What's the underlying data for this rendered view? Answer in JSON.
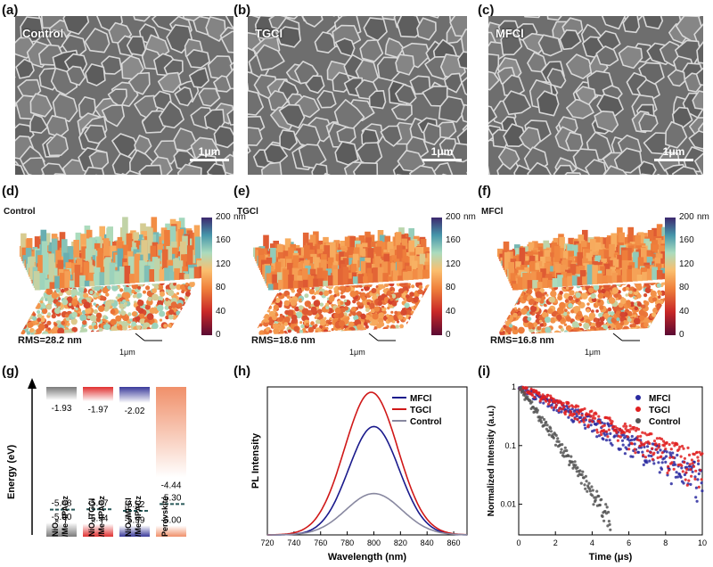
{
  "panels": {
    "a": "(a)",
    "b": "(b)",
    "c": "(c)",
    "d": "(d)",
    "e": "(e)",
    "f": "(f)",
    "g": "(g)",
    "h": "(h)",
    "i": "(i)"
  },
  "sem": {
    "labels": [
      "Control",
      "TGCl",
      "MFCl"
    ],
    "scale_bar": "1μm"
  },
  "afm": {
    "labels": [
      "Control",
      "TGCl",
      "MFCl"
    ],
    "rms": [
      "RMS=28.2 nm",
      "RMS=18.6 nm",
      "RMS=16.8 nm"
    ],
    "scale": "1μm",
    "colorbar_ticks": [
      "200",
      "160",
      "120",
      "80",
      "40",
      "0"
    ],
    "colorbar_unit": "nm"
  },
  "energy": {
    "ylabel": "Energy (eV)",
    "columns": [
      {
        "name": "NiOx/Me-4PACz",
        "name_lines": [
          "NiOₓ",
          "/Me-4PACz"
        ],
        "lumo": "-1.93",
        "fermi": "-5.48",
        "homo": "-5.90",
        "color": "#7a7a7a"
      },
      {
        "name": "NiOx/TGCl/Me-4PACz",
        "name_lines": [
          "NiOₓ/TGCl",
          "/Me-4PACz"
        ],
        "lumo": "-1.97",
        "fermi": "-5.47",
        "homo": "-5.94",
        "color": "#e03030"
      },
      {
        "name": "NiOx/MFCl/Me-4PACz",
        "name_lines": [
          "NiOₓ/MFCl",
          "/Me-4PACz"
        ],
        "lumo": "-2.02",
        "fermi": "-5.52",
        "homo": "-5.99",
        "color": "#3a3a9a"
      },
      {
        "name": "Perovskite",
        "name_lines": [
          "Perovskite"
        ],
        "lumo": "-4.44",
        "fermi": "-5.30",
        "homo": "-6.00",
        "color": "#f0906a"
      }
    ]
  },
  "chart_data": [
    {
      "type": "line",
      "title": "",
      "xlabel": "Wavelength (nm)",
      "ylabel": "PL Intensity",
      "xlim": [
        720,
        870
      ],
      "x_ticks": [
        720,
        740,
        760,
        780,
        800,
        820,
        840,
        860
      ],
      "legend": "top-right",
      "series": [
        {
          "name": "MFCl",
          "color": "#1a1a8c",
          "peak_x": 800,
          "peak_y": 0.76,
          "width": 19
        },
        {
          "name": "TGCl",
          "color": "#d01818",
          "peak_x": 798,
          "peak_y": 1.0,
          "width": 20
        },
        {
          "name": "Control",
          "color": "#8888a0",
          "peak_x": 800,
          "peak_y": 0.29,
          "width": 21
        }
      ]
    },
    {
      "type": "scatter",
      "title": "",
      "xlabel": "Time (μs)",
      "ylabel": "Normalized Intensity (a.u.)",
      "xlim": [
        0,
        10
      ],
      "ylim": [
        0.003,
        1
      ],
      "y_scale": "log",
      "x_ticks": [
        0,
        2,
        4,
        6,
        8,
        10
      ],
      "y_ticks": [
        1,
        0.1,
        0.01
      ],
      "y_tick_labels": [
        "1",
        "0.1",
        "0.01"
      ],
      "legend": "top-right",
      "series": [
        {
          "name": "MFCl",
          "color": "#2a2aa0",
          "tau_us": 2.78,
          "x_end": 10
        },
        {
          "name": "TGCl",
          "color": "#e02020",
          "tau_us": 3.2,
          "x_end": 10
        },
        {
          "name": "Control",
          "color": "#555555",
          "tau_us": 0.97,
          "x_end": 5
        }
      ]
    }
  ]
}
